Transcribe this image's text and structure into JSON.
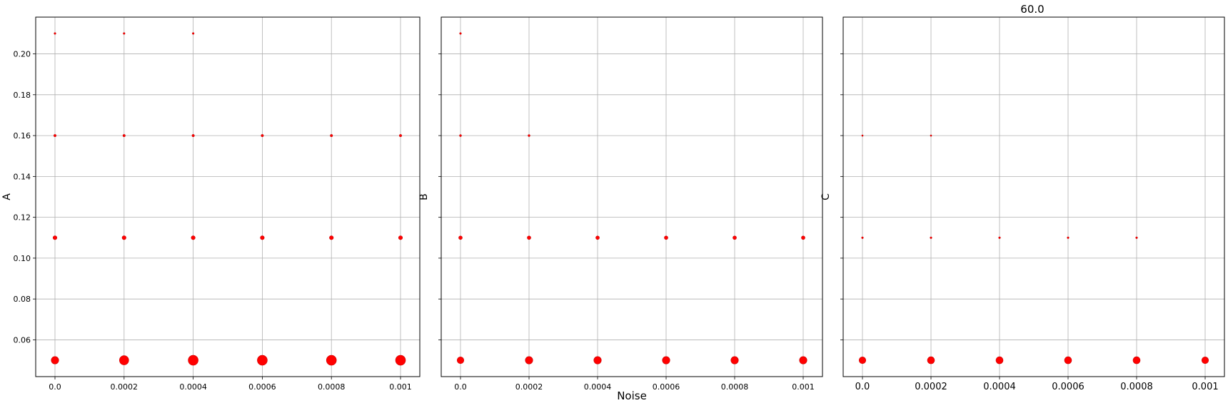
{
  "figure": {
    "title": "60.0",
    "xlabel": "Noise"
  },
  "chart_data": [
    {
      "type": "scatter",
      "ylabel": "A",
      "x_ticks": [
        "0.0",
        "0.0002",
        "0.0004",
        "0.0006",
        "0.0008",
        "0.001"
      ],
      "y_ticks": [
        "0.06",
        "0.08",
        "0.10",
        "0.12",
        "0.14",
        "0.16",
        "0.18",
        "0.20"
      ],
      "xlim": [
        -5e-05,
        0.00105
      ],
      "ylim": [
        0.042,
        0.218
      ],
      "grid": true,
      "color": "#ff0000",
      "points": [
        {
          "x": 0.0,
          "y": 0.21,
          "size": 1
        },
        {
          "x": 0.0002,
          "y": 0.21,
          "size": 1
        },
        {
          "x": 0.0004,
          "y": 0.21,
          "size": 1
        },
        {
          "x": 0.0,
          "y": 0.16,
          "size": 1.3
        },
        {
          "x": 0.0002,
          "y": 0.16,
          "size": 1.3
        },
        {
          "x": 0.0004,
          "y": 0.16,
          "size": 1.3
        },
        {
          "x": 0.0006,
          "y": 0.16,
          "size": 1.3
        },
        {
          "x": 0.0008,
          "y": 0.16,
          "size": 1.3
        },
        {
          "x": 0.001,
          "y": 0.16,
          "size": 1.3
        },
        {
          "x": 0.0,
          "y": 0.11,
          "size": 2.2
        },
        {
          "x": 0.0002,
          "y": 0.11,
          "size": 2.2
        },
        {
          "x": 0.0004,
          "y": 0.11,
          "size": 2.2
        },
        {
          "x": 0.0006,
          "y": 0.11,
          "size": 2.2
        },
        {
          "x": 0.0008,
          "y": 0.11,
          "size": 2.2
        },
        {
          "x": 0.001,
          "y": 0.11,
          "size": 2.2
        },
        {
          "x": 0.0,
          "y": 0.05,
          "size": 4.2
        },
        {
          "x": 0.0002,
          "y": 0.05,
          "size": 5.2
        },
        {
          "x": 0.0004,
          "y": 0.05,
          "size": 5.6
        },
        {
          "x": 0.0006,
          "y": 0.05,
          "size": 5.6
        },
        {
          "x": 0.0008,
          "y": 0.05,
          "size": 5.6
        },
        {
          "x": 0.001,
          "y": 0.05,
          "size": 5.6
        }
      ]
    },
    {
      "type": "scatter",
      "ylabel": "B",
      "x_ticks": [
        "0.0",
        "0.0002",
        "0.0004",
        "0.0006",
        "0.0008",
        "0.001"
      ],
      "y_ticks": [],
      "xlim": [
        -5e-05,
        0.00105
      ],
      "ylim": [
        0.042,
        0.218
      ],
      "grid": true,
      "color": "#ff0000",
      "points": [
        {
          "x": 0.0,
          "y": 0.21,
          "size": 1
        },
        {
          "x": 0.0,
          "y": 0.16,
          "size": 1.1
        },
        {
          "x": 0.0002,
          "y": 0.16,
          "size": 1.1
        },
        {
          "x": 0.0,
          "y": 0.11,
          "size": 2
        },
        {
          "x": 0.0002,
          "y": 0.11,
          "size": 2
        },
        {
          "x": 0.0004,
          "y": 0.11,
          "size": 2
        },
        {
          "x": 0.0006,
          "y": 0.11,
          "size": 2
        },
        {
          "x": 0.0008,
          "y": 0.11,
          "size": 2
        },
        {
          "x": 0.001,
          "y": 0.11,
          "size": 2
        },
        {
          "x": 0.0,
          "y": 0.05,
          "size": 3.8
        },
        {
          "x": 0.0002,
          "y": 0.05,
          "size": 4.2
        },
        {
          "x": 0.0004,
          "y": 0.05,
          "size": 4.2
        },
        {
          "x": 0.0006,
          "y": 0.05,
          "size": 4.2
        },
        {
          "x": 0.0008,
          "y": 0.05,
          "size": 4.2
        },
        {
          "x": 0.001,
          "y": 0.05,
          "size": 4.2
        }
      ]
    },
    {
      "type": "scatter",
      "ylabel": "C",
      "x_ticks": [
        "0.0",
        "0.0002",
        "0.0004",
        "0.0006",
        "0.0008",
        "0.001"
      ],
      "y_ticks": [],
      "xlim": [
        -5e-05,
        0.00105
      ],
      "ylim": [
        0.042,
        0.218
      ],
      "grid": true,
      "color": "#ff0000",
      "points": [
        {
          "x": 0.0,
          "y": 0.16,
          "size": 0.8
        },
        {
          "x": 0.0002,
          "y": 0.16,
          "size": 0.8
        },
        {
          "x": 0.0,
          "y": 0.11,
          "size": 1
        },
        {
          "x": 0.0002,
          "y": 0.11,
          "size": 1
        },
        {
          "x": 0.0004,
          "y": 0.11,
          "size": 1
        },
        {
          "x": 0.0006,
          "y": 0.11,
          "size": 1
        },
        {
          "x": 0.0008,
          "y": 0.11,
          "size": 1
        },
        {
          "x": 0.0,
          "y": 0.05,
          "size": 3.8
        },
        {
          "x": 0.0002,
          "y": 0.05,
          "size": 4
        },
        {
          "x": 0.0004,
          "y": 0.05,
          "size": 4
        },
        {
          "x": 0.0006,
          "y": 0.05,
          "size": 4
        },
        {
          "x": 0.0008,
          "y": 0.05,
          "size": 4
        },
        {
          "x": 0.001,
          "y": 0.05,
          "size": 3.8
        }
      ]
    }
  ]
}
